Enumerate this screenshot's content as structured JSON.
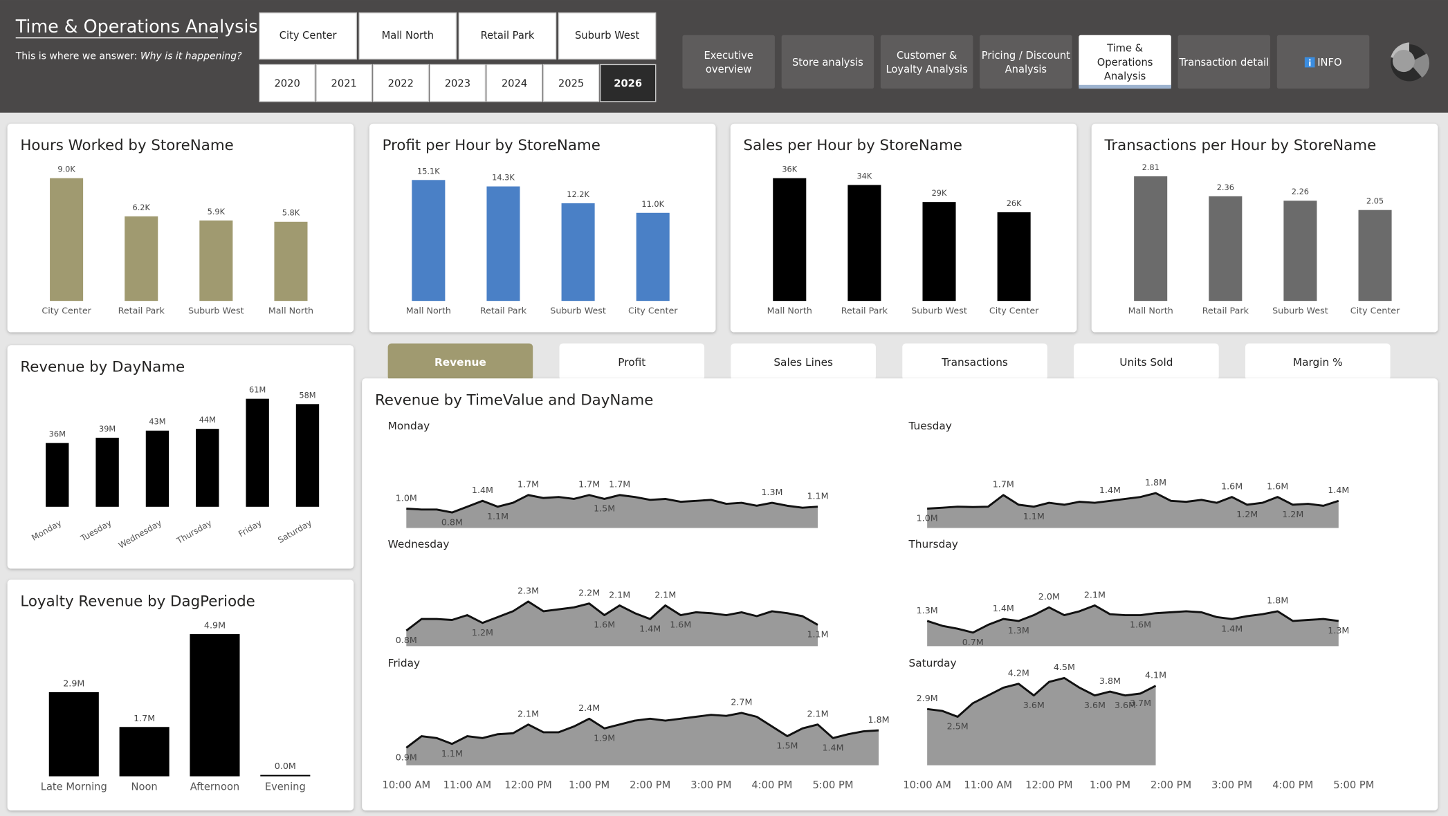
{
  "header": {
    "title": "Time & Operations Analysis",
    "subtitle": "This is where we answer: ",
    "subtitle_emphasis": "Why is it happening?"
  },
  "filters": {
    "stores": [
      "City Center",
      "Mall North",
      "Retail Park",
      "Suburb West"
    ],
    "years": [
      "2020",
      "2021",
      "2022",
      "2023",
      "2024",
      "2025",
      "2026"
    ],
    "selected_year": 6
  },
  "nav": {
    "tabs": [
      {
        "lines": [
          "Executive",
          "overview"
        ]
      },
      {
        "lines": [
          "Store analysis"
        ]
      },
      {
        "lines": [
          "Customer &",
          "Loyalty Analysis"
        ]
      },
      {
        "lines": [
          "Pricing / Discount",
          "Analysis"
        ]
      },
      {
        "lines": [
          "Time &",
          "Operations",
          "Analysis"
        ]
      },
      {
        "lines": [
          "Transaction detail"
        ]
      },
      {
        "lines": [
          "INFO"
        ]
      }
    ],
    "selected": 4
  },
  "metric_tabs": {
    "items": [
      "Revenue",
      "Profit",
      "Sales Lines",
      "Transactions",
      "Units Sold",
      "Margin %"
    ],
    "selected": 0
  },
  "chart_data": [
    {
      "type": "bar",
      "title": "Hours Worked by StoreName",
      "categories": [
        "City Center",
        "Retail Park",
        "Suburb West",
        "Mall North"
      ],
      "values": [
        9000,
        6200,
        5900,
        5800
      ],
      "value_labels": [
        "9.0K",
        "6.2K",
        "5.9K",
        "5.8K"
      ],
      "color": "#a09a70"
    },
    {
      "type": "bar",
      "title": "Profit per Hour by StoreName",
      "categories": [
        "Mall North",
        "Retail Park",
        "Suburb West",
        "City Center"
      ],
      "values": [
        15100,
        14300,
        12200,
        11000
      ],
      "value_labels": [
        "15.1K",
        "14.3K",
        "12.2K",
        "11.0K"
      ],
      "color": "#4a80c6"
    },
    {
      "type": "bar",
      "title": "Sales per Hour by StoreName",
      "categories": [
        "Mall North",
        "Retail Park",
        "Suburb West",
        "City Center"
      ],
      "values": [
        36000,
        34000,
        29000,
        26000
      ],
      "value_labels": [
        "36K",
        "34K",
        "29K",
        "26K"
      ],
      "color": "#000000"
    },
    {
      "type": "bar",
      "title": "Transactions per Hour by StoreName",
      "categories": [
        "Mall North",
        "Retail Park",
        "Suburb West",
        "City Center"
      ],
      "values": [
        2.81,
        2.36,
        2.26,
        2.05
      ],
      "color": "#6b6b6b"
    },
    {
      "type": "bar",
      "title": "Revenue by DayName",
      "categories": [
        "Monday",
        "Tuesday",
        "Wednesday",
        "Thursday",
        "Friday",
        "Saturday"
      ],
      "values": [
        36000000,
        39000000,
        43000000,
        44000000,
        61000000,
        58000000
      ],
      "value_labels": [
        "36M",
        "39M",
        "43M",
        "44M",
        "61M",
        "58M"
      ],
      "color": "#000000"
    },
    {
      "type": "bar",
      "title": "Loyalty Revenue by DagPeriode",
      "categories": [
        "Late Morning",
        "Noon",
        "Afternoon",
        "Evening"
      ],
      "values": [
        2900000,
        1700000,
        4900000,
        0
      ],
      "value_labels": [
        "2.9M",
        "1.7M",
        "4.9M",
        "0.0M"
      ],
      "color": "#000000"
    },
    {
      "type": "area",
      "title": "Revenue by TimeValue and DayName",
      "ylim": [
        0,
        4.5
      ],
      "xticks": [
        {
          "value": 10,
          "label": "10:00 AM"
        },
        {
          "value": 11,
          "label": "11:00 AM"
        },
        {
          "value": 12,
          "label": "12:00 PM"
        },
        {
          "value": 13,
          "label": "1:00 PM"
        },
        {
          "value": 14,
          "label": "2:00 PM"
        },
        {
          "value": 15,
          "label": "3:00 PM"
        },
        {
          "value": 16,
          "label": "4:00 PM"
        },
        {
          "value": 17,
          "label": "5:00 PM"
        }
      ],
      "series": [
        {
          "name": "Monday",
          "x": [
            10,
            10.25,
            10.5,
            10.75,
            11,
            11.25,
            11.5,
            11.75,
            12,
            12.25,
            12.5,
            12.75,
            13,
            13.25,
            13.5,
            13.75,
            14,
            14.25,
            14.5,
            14.75,
            15,
            15.25,
            15.5,
            15.75,
            16,
            16.25,
            16.5,
            16.75
          ],
          "values": [
            1.0,
            0.95,
            0.95,
            0.8,
            1.1,
            1.4,
            1.1,
            1.3,
            1.7,
            1.55,
            1.6,
            1.5,
            1.7,
            1.5,
            1.7,
            1.6,
            1.45,
            1.5,
            1.35,
            1.4,
            1.45,
            1.25,
            1.3,
            1.15,
            1.3,
            1.15,
            1.05,
            1.1
          ],
          "value_labels": [
            "1.0M",
            null,
            null,
            "0.8M",
            null,
            "1.4M",
            "1.1M",
            null,
            "1.7M",
            null,
            null,
            null,
            "1.7M",
            "1.5M",
            "1.7M",
            null,
            null,
            null,
            null,
            null,
            null,
            null,
            null,
            null,
            "1.3M",
            null,
            null,
            "1.1M"
          ]
        },
        {
          "name": "Tuesday",
          "x": [
            10,
            10.25,
            10.5,
            10.75,
            11,
            11.25,
            11.5,
            11.75,
            12,
            12.25,
            12.5,
            12.75,
            13,
            13.25,
            13.5,
            13.75,
            14,
            14.25,
            14.5,
            14.75,
            15,
            15.25,
            15.5,
            15.75,
            16,
            16.25,
            16.5,
            16.75
          ],
          "values": [
            1.0,
            1.05,
            1.1,
            1.08,
            1.1,
            1.7,
            1.2,
            1.1,
            1.3,
            1.2,
            1.35,
            1.3,
            1.4,
            1.5,
            1.6,
            1.8,
            1.4,
            1.35,
            1.45,
            1.3,
            1.6,
            1.2,
            1.3,
            1.6,
            1.2,
            1.25,
            1.15,
            1.4
          ],
          "value_labels": [
            "1.0M",
            null,
            null,
            null,
            null,
            "1.7M",
            null,
            "1.1M",
            null,
            null,
            null,
            null,
            "1.4M",
            null,
            null,
            "1.8M",
            null,
            null,
            null,
            null,
            "1.6M",
            "1.2M",
            null,
            "1.6M",
            "1.2M",
            null,
            null,
            "1.4M"
          ]
        },
        {
          "name": "Wednesday",
          "x": [
            10,
            10.25,
            10.5,
            10.75,
            11,
            11.25,
            11.5,
            11.75,
            12,
            12.25,
            12.5,
            12.75,
            13,
            13.25,
            13.5,
            13.75,
            14,
            14.25,
            14.5,
            14.75,
            15,
            15.25,
            15.5,
            15.75,
            16,
            16.25,
            16.5,
            16.75
          ],
          "values": [
            0.8,
            1.4,
            1.4,
            1.35,
            1.6,
            1.2,
            1.5,
            1.8,
            2.3,
            1.8,
            1.9,
            2.0,
            2.2,
            1.6,
            2.1,
            1.7,
            1.4,
            2.1,
            1.6,
            1.75,
            1.7,
            1.6,
            1.75,
            1.55,
            1.8,
            1.7,
            1.55,
            1.1
          ],
          "value_labels": [
            "0.8M",
            null,
            null,
            null,
            null,
            "1.2M",
            null,
            null,
            "2.3M",
            null,
            null,
            null,
            "2.2M",
            "1.6M",
            "2.1M",
            null,
            "1.4M",
            "2.1M",
            "1.6M",
            null,
            null,
            null,
            null,
            null,
            null,
            null,
            null,
            "1.1M"
          ]
        },
        {
          "name": "Thursday",
          "x": [
            10,
            10.25,
            10.5,
            10.75,
            11,
            11.25,
            11.5,
            11.75,
            12,
            12.25,
            12.5,
            12.75,
            13,
            13.25,
            13.5,
            13.75,
            14,
            14.25,
            14.5,
            14.75,
            15,
            15.25,
            15.5,
            15.75,
            16,
            16.25,
            16.5,
            16.75
          ],
          "values": [
            1.3,
            1.05,
            0.9,
            0.7,
            1.1,
            1.4,
            1.3,
            1.6,
            2.0,
            1.6,
            1.8,
            2.1,
            1.65,
            1.6,
            1.6,
            1.7,
            1.75,
            1.8,
            1.75,
            1.5,
            1.4,
            1.55,
            1.65,
            1.8,
            1.3,
            1.35,
            1.4,
            1.3
          ],
          "value_labels": [
            "1.3M",
            null,
            null,
            "0.7M",
            null,
            "1.4M",
            "1.3M",
            null,
            "2.0M",
            null,
            null,
            "2.1M",
            null,
            null,
            "1.6M",
            null,
            null,
            null,
            null,
            null,
            "1.4M",
            null,
            null,
            "1.8M",
            null,
            null,
            null,
            "1.3M"
          ]
        },
        {
          "name": "Friday",
          "x": [
            10,
            10.25,
            10.5,
            10.75,
            11,
            11.25,
            11.5,
            11.75,
            12,
            12.25,
            12.5,
            12.75,
            13,
            13.25,
            13.5,
            13.75,
            14,
            14.25,
            14.5,
            14.75,
            15,
            15.25,
            15.5,
            15.75,
            16,
            16.25,
            16.5,
            16.75,
            17,
            17.25,
            17.5,
            17.75
          ],
          "values": [
            0.9,
            1.5,
            1.4,
            1.1,
            1.5,
            1.4,
            1.6,
            1.65,
            2.1,
            1.7,
            1.7,
            2.0,
            2.4,
            1.9,
            2.1,
            2.3,
            2.4,
            2.3,
            2.4,
            2.5,
            2.6,
            2.55,
            2.7,
            2.5,
            2.0,
            1.5,
            1.9,
            2.1,
            1.4,
            1.6,
            1.75,
            1.8
          ],
          "value_labels": [
            "0.9M",
            null,
            null,
            "1.1M",
            null,
            null,
            null,
            null,
            "2.1M",
            null,
            null,
            null,
            "2.4M",
            "1.9M",
            null,
            null,
            null,
            null,
            null,
            null,
            null,
            null,
            "2.7M",
            null,
            null,
            "1.5M",
            null,
            "2.1M",
            "1.4M",
            null,
            null,
            "1.8M"
          ]
        },
        {
          "name": "Saturday",
          "x": [
            10,
            10.25,
            10.5,
            10.75,
            11,
            11.25,
            11.5,
            11.75,
            12,
            12.25,
            12.5,
            12.75,
            13,
            13.25,
            13.5,
            13.75
          ],
          "values": [
            2.9,
            2.8,
            2.5,
            3.2,
            3.6,
            4.0,
            4.2,
            3.6,
            4.3,
            4.5,
            4.0,
            3.6,
            3.8,
            3.6,
            3.7,
            4.1
          ],
          "value_labels": [
            "2.9M",
            null,
            "2.5M",
            null,
            null,
            null,
            "4.2M",
            "3.6M",
            null,
            "4.5M",
            null,
            "3.6M",
            "3.8M",
            "3.6M",
            "3.7M",
            "4.1M"
          ]
        }
      ]
    }
  ]
}
